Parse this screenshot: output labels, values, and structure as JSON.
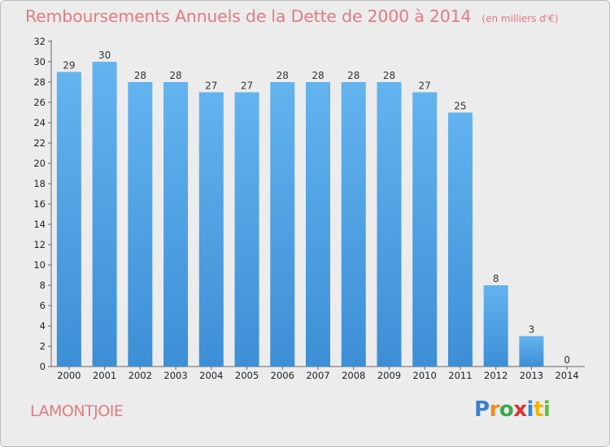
{
  "title": "Remboursements Annuels de la Dette de 2000 à 2014",
  "unit_note": "(en milliers d'€)",
  "commune": "LAMONTJOIE",
  "brand": {
    "letters": [
      "P",
      "r",
      "o",
      "x",
      "i",
      "t",
      "i"
    ],
    "colors": [
      "#3a7fd0",
      "#f28c1e",
      "#3aa84a",
      "#e0322c",
      "#2d8ad8",
      "#f4b400",
      "#5bbf3c"
    ]
  },
  "colors": {
    "bar": "#3d8fd6",
    "bar_light": "#63b3ef",
    "axis": "#666666",
    "background": "#ececec"
  },
  "chart_data": {
    "type": "bar",
    "title": "Remboursements Annuels de la Dette de 2000 à 2014",
    "categories": [
      "2000",
      "2001",
      "2002",
      "2003",
      "2004",
      "2005",
      "2006",
      "2007",
      "2008",
      "2009",
      "2010",
      "2011",
      "2012",
      "2013",
      "2014"
    ],
    "values": [
      29,
      30,
      28,
      28,
      27,
      27,
      28,
      28,
      28,
      28,
      27,
      25,
      8,
      3,
      0
    ],
    "ylim": [
      0,
      32
    ],
    "yticks": [
      0,
      2,
      4,
      6,
      8,
      10,
      12,
      14,
      16,
      18,
      20,
      22,
      24,
      26,
      28,
      30,
      32
    ],
    "xlabel": "",
    "ylabel": "",
    "grid": false,
    "legend": "none"
  }
}
